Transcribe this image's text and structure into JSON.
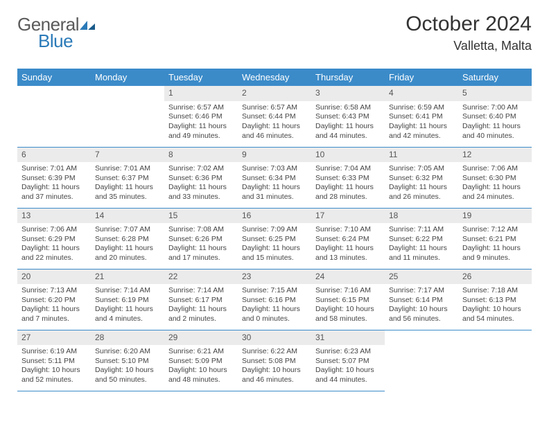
{
  "logo": {
    "word1": "General",
    "word2": "Blue"
  },
  "title": "October 2024",
  "location": "Valletta, Malta",
  "colors": {
    "header_bg": "#3b8bc9",
    "header_text": "#ffffff",
    "daynum_bg": "#ebebeb",
    "row_border": "#3b8bc9",
    "logo_gray": "#5a5a5a",
    "logo_blue": "#2a7ab8"
  },
  "weekdays": [
    "Sunday",
    "Monday",
    "Tuesday",
    "Wednesday",
    "Thursday",
    "Friday",
    "Saturday"
  ],
  "grid": [
    [
      null,
      null,
      {
        "n": "1",
        "sr": "Sunrise: 6:57 AM",
        "ss": "Sunset: 6:46 PM",
        "d1": "Daylight: 11 hours",
        "d2": "and 49 minutes."
      },
      {
        "n": "2",
        "sr": "Sunrise: 6:57 AM",
        "ss": "Sunset: 6:44 PM",
        "d1": "Daylight: 11 hours",
        "d2": "and 46 minutes."
      },
      {
        "n": "3",
        "sr": "Sunrise: 6:58 AM",
        "ss": "Sunset: 6:43 PM",
        "d1": "Daylight: 11 hours",
        "d2": "and 44 minutes."
      },
      {
        "n": "4",
        "sr": "Sunrise: 6:59 AM",
        "ss": "Sunset: 6:41 PM",
        "d1": "Daylight: 11 hours",
        "d2": "and 42 minutes."
      },
      {
        "n": "5",
        "sr": "Sunrise: 7:00 AM",
        "ss": "Sunset: 6:40 PM",
        "d1": "Daylight: 11 hours",
        "d2": "and 40 minutes."
      }
    ],
    [
      {
        "n": "6",
        "sr": "Sunrise: 7:01 AM",
        "ss": "Sunset: 6:39 PM",
        "d1": "Daylight: 11 hours",
        "d2": "and 37 minutes."
      },
      {
        "n": "7",
        "sr": "Sunrise: 7:01 AM",
        "ss": "Sunset: 6:37 PM",
        "d1": "Daylight: 11 hours",
        "d2": "and 35 minutes."
      },
      {
        "n": "8",
        "sr": "Sunrise: 7:02 AM",
        "ss": "Sunset: 6:36 PM",
        "d1": "Daylight: 11 hours",
        "d2": "and 33 minutes."
      },
      {
        "n": "9",
        "sr": "Sunrise: 7:03 AM",
        "ss": "Sunset: 6:34 PM",
        "d1": "Daylight: 11 hours",
        "d2": "and 31 minutes."
      },
      {
        "n": "10",
        "sr": "Sunrise: 7:04 AM",
        "ss": "Sunset: 6:33 PM",
        "d1": "Daylight: 11 hours",
        "d2": "and 28 minutes."
      },
      {
        "n": "11",
        "sr": "Sunrise: 7:05 AM",
        "ss": "Sunset: 6:32 PM",
        "d1": "Daylight: 11 hours",
        "d2": "and 26 minutes."
      },
      {
        "n": "12",
        "sr": "Sunrise: 7:06 AM",
        "ss": "Sunset: 6:30 PM",
        "d1": "Daylight: 11 hours",
        "d2": "and 24 minutes."
      }
    ],
    [
      {
        "n": "13",
        "sr": "Sunrise: 7:06 AM",
        "ss": "Sunset: 6:29 PM",
        "d1": "Daylight: 11 hours",
        "d2": "and 22 minutes."
      },
      {
        "n": "14",
        "sr": "Sunrise: 7:07 AM",
        "ss": "Sunset: 6:28 PM",
        "d1": "Daylight: 11 hours",
        "d2": "and 20 minutes."
      },
      {
        "n": "15",
        "sr": "Sunrise: 7:08 AM",
        "ss": "Sunset: 6:26 PM",
        "d1": "Daylight: 11 hours",
        "d2": "and 17 minutes."
      },
      {
        "n": "16",
        "sr": "Sunrise: 7:09 AM",
        "ss": "Sunset: 6:25 PM",
        "d1": "Daylight: 11 hours",
        "d2": "and 15 minutes."
      },
      {
        "n": "17",
        "sr": "Sunrise: 7:10 AM",
        "ss": "Sunset: 6:24 PM",
        "d1": "Daylight: 11 hours",
        "d2": "and 13 minutes."
      },
      {
        "n": "18",
        "sr": "Sunrise: 7:11 AM",
        "ss": "Sunset: 6:22 PM",
        "d1": "Daylight: 11 hours",
        "d2": "and 11 minutes."
      },
      {
        "n": "19",
        "sr": "Sunrise: 7:12 AM",
        "ss": "Sunset: 6:21 PM",
        "d1": "Daylight: 11 hours",
        "d2": "and 9 minutes."
      }
    ],
    [
      {
        "n": "20",
        "sr": "Sunrise: 7:13 AM",
        "ss": "Sunset: 6:20 PM",
        "d1": "Daylight: 11 hours",
        "d2": "and 7 minutes."
      },
      {
        "n": "21",
        "sr": "Sunrise: 7:14 AM",
        "ss": "Sunset: 6:19 PM",
        "d1": "Daylight: 11 hours",
        "d2": "and 4 minutes."
      },
      {
        "n": "22",
        "sr": "Sunrise: 7:14 AM",
        "ss": "Sunset: 6:17 PM",
        "d1": "Daylight: 11 hours",
        "d2": "and 2 minutes."
      },
      {
        "n": "23",
        "sr": "Sunrise: 7:15 AM",
        "ss": "Sunset: 6:16 PM",
        "d1": "Daylight: 11 hours",
        "d2": "and 0 minutes."
      },
      {
        "n": "24",
        "sr": "Sunrise: 7:16 AM",
        "ss": "Sunset: 6:15 PM",
        "d1": "Daylight: 10 hours",
        "d2": "and 58 minutes."
      },
      {
        "n": "25",
        "sr": "Sunrise: 7:17 AM",
        "ss": "Sunset: 6:14 PM",
        "d1": "Daylight: 10 hours",
        "d2": "and 56 minutes."
      },
      {
        "n": "26",
        "sr": "Sunrise: 7:18 AM",
        "ss": "Sunset: 6:13 PM",
        "d1": "Daylight: 10 hours",
        "d2": "and 54 minutes."
      }
    ],
    [
      {
        "n": "27",
        "sr": "Sunrise: 6:19 AM",
        "ss": "Sunset: 5:11 PM",
        "d1": "Daylight: 10 hours",
        "d2": "and 52 minutes."
      },
      {
        "n": "28",
        "sr": "Sunrise: 6:20 AM",
        "ss": "Sunset: 5:10 PM",
        "d1": "Daylight: 10 hours",
        "d2": "and 50 minutes."
      },
      {
        "n": "29",
        "sr": "Sunrise: 6:21 AM",
        "ss": "Sunset: 5:09 PM",
        "d1": "Daylight: 10 hours",
        "d2": "and 48 minutes."
      },
      {
        "n": "30",
        "sr": "Sunrise: 6:22 AM",
        "ss": "Sunset: 5:08 PM",
        "d1": "Daylight: 10 hours",
        "d2": "and 46 minutes."
      },
      {
        "n": "31",
        "sr": "Sunrise: 6:23 AM",
        "ss": "Sunset: 5:07 PM",
        "d1": "Daylight: 10 hours",
        "d2": "and 44 minutes."
      },
      null,
      null
    ]
  ]
}
